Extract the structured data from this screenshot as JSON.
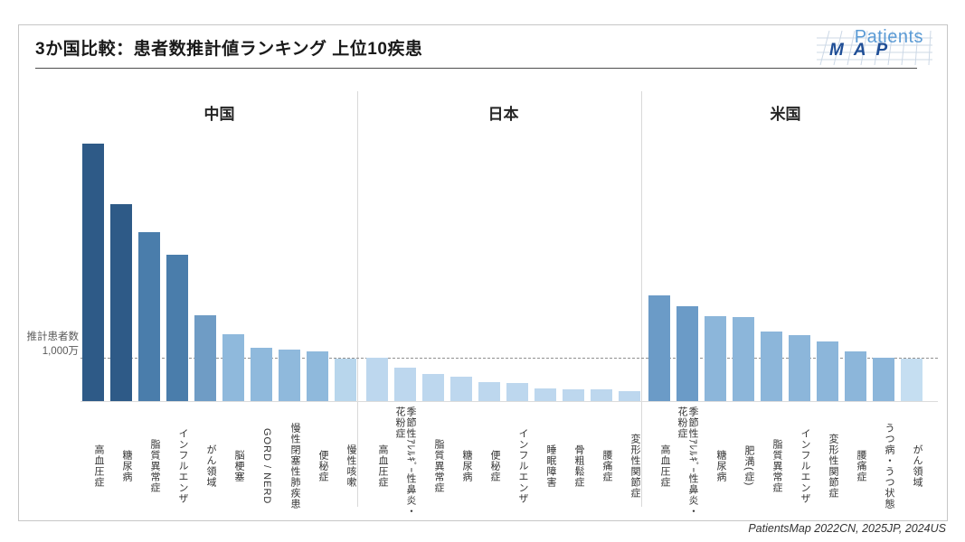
{
  "header": {
    "title": "3か国比較：患者数推計値ランキング 上位10疾患",
    "logo": {
      "line1": "Patients",
      "line2": "MAP"
    }
  },
  "axis": {
    "ylabel_line1": "推計患者数",
    "ylabel_line2": "1,000万"
  },
  "chart_data": {
    "type": "bar",
    "title": "3か国比較：患者数推計値ランキング 上位10疾患",
    "ylabel": "推計患者数",
    "unit": "万",
    "gridline": {
      "value": 1000,
      "label": "1,000万",
      "style": "dashed"
    },
    "ylim": [
      0,
      6400
    ],
    "legend_position": "none",
    "grid": "single dashed reference line at 1,000万",
    "groups": [
      {
        "country": "中国",
        "categories": [
          "高血圧症",
          "糖尿病",
          "脂質異常症",
          "インフルエンザ",
          "がん領域",
          "脳梗塞",
          "GORD / NERD",
          "慢性閉塞性肺疾患",
          "便秘症",
          "慢性咳嗽"
        ],
        "values": [
          6060,
          4630,
          3970,
          3450,
          2020,
          1580,
          1265,
          1220,
          1180,
          990
        ],
        "colors": [
          "#2E5A87",
          "#2E5A87",
          "#4A7DAB",
          "#4A7DAB",
          "#6F9CC5",
          "#8FB9DC",
          "#8FB9DC",
          "#8FB9DC",
          "#8FB9DC",
          "#B8D6EC"
        ]
      },
      {
        "country": "日本",
        "categories": [
          "高血圧症",
          "季節性ｱﾚﾙｷﾞｰ性鼻炎・花粉症",
          "脂質異常症",
          "糖尿病",
          "便秘症",
          "インフルエンザ",
          "睡眠障害",
          "骨粗鬆症",
          "腰痛症",
          "変形性関節症"
        ],
        "values": [
          1020,
          790,
          630,
          580,
          445,
          430,
          300,
          285,
          270,
          235
        ],
        "colors": [
          "#BDD7EE",
          "#BDD7EE",
          "#BDD7EE",
          "#BDD7EE",
          "#BDD7EE",
          "#BDD7EE",
          "#BDD7EE",
          "#BDD7EE",
          "#BDD7EE",
          "#BDD7EE"
        ]
      },
      {
        "country": "米国",
        "categories": [
          "高血圧症",
          "季節性ｱﾚﾙｷﾞｰ性鼻炎・花粉症",
          "糖尿病",
          "肥満(症)",
          "脂質異常症",
          "インフルエンザ",
          "変形性関節症",
          "腰痛症",
          "うつ病・うつ状態",
          "がん領域"
        ],
        "values": [
          2480,
          2240,
          2000,
          1985,
          1640,
          1555,
          1405,
          1180,
          1015,
          1000
        ],
        "colors": [
          "#6B9BC7",
          "#6B9BC7",
          "#8CB6DA",
          "#8CB6DA",
          "#8CB6DA",
          "#8CB6DA",
          "#8CB6DA",
          "#8CB6DA",
          "#8CB6DA",
          "#C5DEF1"
        ]
      }
    ],
    "values_note": "values in 万 (10,000 patients), estimated from the 1,000万 dashed gridline"
  },
  "footer": {
    "source": "PatientsMap 2022CN, 2025JP, 2024US"
  }
}
